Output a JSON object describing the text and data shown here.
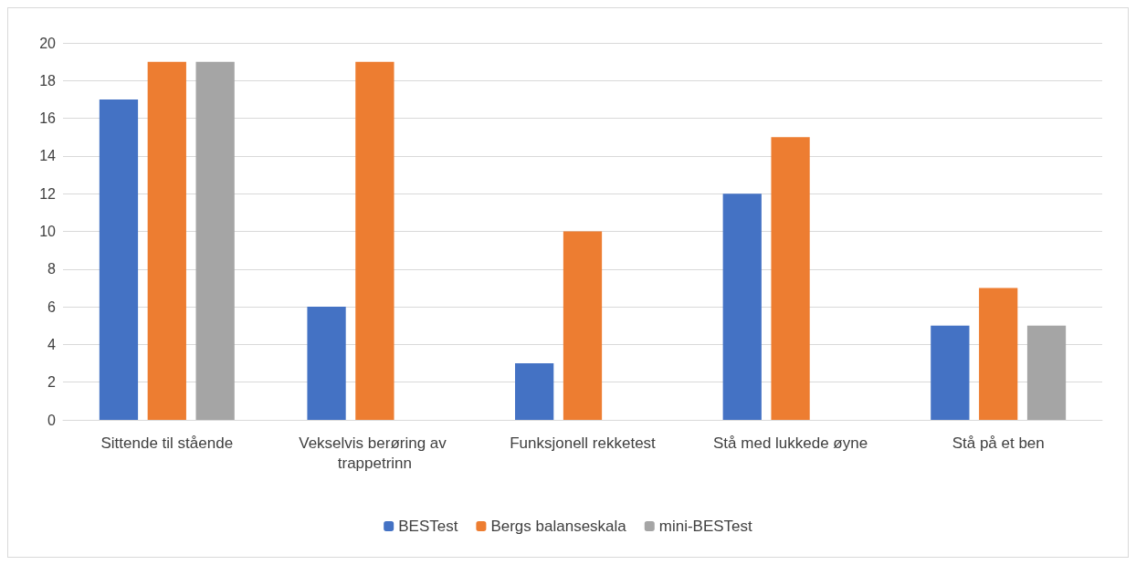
{
  "chart_data": {
    "type": "bar",
    "categories": [
      "Sittende til stående",
      "Vekselvis berøring av trappetrinn",
      "Funksjonell rekketest",
      "Stå med lukkede øyne",
      "Stå på et ben"
    ],
    "series": [
      {
        "name": "BESTest",
        "color": "#4472c4",
        "values": [
          17,
          6,
          3,
          12,
          5
        ]
      },
      {
        "name": "Bergs balanseskala",
        "color": "#ed7d31",
        "values": [
          19,
          19,
          10,
          15,
          7
        ]
      },
      {
        "name": "mini-BESTest",
        "color": "#a5a5a5",
        "values": [
          19,
          null,
          null,
          null,
          5
        ]
      }
    ],
    "ylim": [
      0,
      20
    ],
    "yticks": [
      0,
      2,
      4,
      6,
      8,
      10,
      12,
      14,
      16,
      18,
      20
    ],
    "grid": "y",
    "legend": "bottom"
  }
}
